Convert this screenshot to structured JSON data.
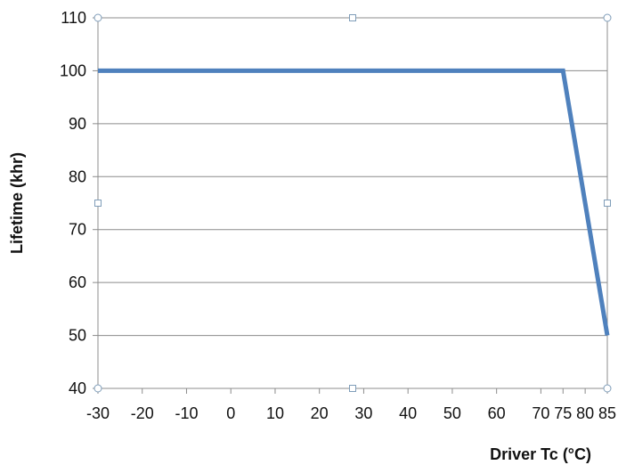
{
  "chart_data": {
    "type": "line",
    "title": "",
    "xlabel": "Driver Tc (°C)",
    "ylabel": "Lifetime (khr)",
    "xlim": [
      -30,
      85
    ],
    "ylim": [
      40,
      110
    ],
    "x_ticks": [
      -30,
      -20,
      -10,
      0,
      10,
      20,
      30,
      40,
      50,
      60,
      70,
      75,
      80,
      85
    ],
    "y_ticks": [
      40,
      50,
      60,
      70,
      80,
      90,
      100,
      110
    ],
    "grid": "horizontal",
    "legend": "none",
    "series": [
      {
        "color": "#4f81bd",
        "points": [
          {
            "x": -30,
            "y": 100
          },
          {
            "x": 75,
            "y": 100
          },
          {
            "x": 85,
            "y": 50
          }
        ]
      }
    ]
  }
}
